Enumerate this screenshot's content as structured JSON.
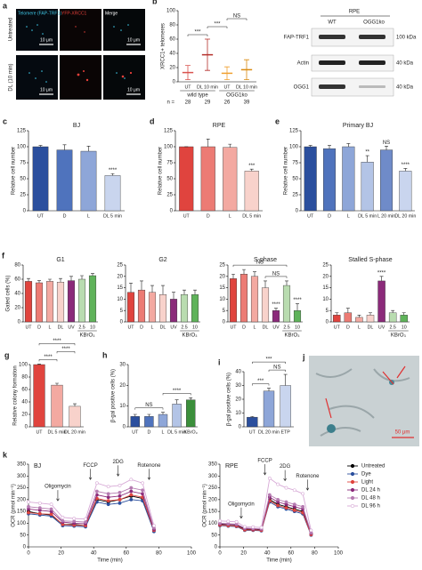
{
  "images": {
    "a": {
      "panel": "a",
      "row_labels": [
        "Untreated",
        "DL (10 min)"
      ],
      "column_labels": [
        "Telomere (FAP-TRF1)",
        "YFP-XRCC1",
        "Merge"
      ],
      "scale": "10 μm"
    },
    "j": {
      "panel": "j",
      "scale": "50 μm"
    }
  },
  "blot": {
    "title": "RPE",
    "lanes": [
      "WT",
      "OGG1ko"
    ],
    "bands": [
      {
        "label": "FAP-TRF1",
        "marker": "100 kDa"
      },
      {
        "label": "Actin",
        "marker": "40 kDa"
      },
      {
        "label": "OGG1",
        "marker": "40 kDa"
      }
    ]
  },
  "chart_data": [
    {
      "type": "dot",
      "panel": "b",
      "ylabel": "XRCC1+ telomeres",
      "categories": [
        "UT",
        "DL 10 min",
        "UT",
        "DL 10 min"
      ],
      "values": [
        13,
        38,
        12,
        17
      ],
      "errors": [
        10,
        22,
        9,
        14
      ],
      "colors": [
        "#d9534f",
        "#b52f2a",
        "#f0a030",
        "#d98a10"
      ],
      "ylim": [
        0,
        100
      ],
      "yticks": [
        0,
        20,
        40,
        60,
        80,
        100
      ],
      "brackets": [
        {
          "text": "***",
          "from": 0,
          "to": 1
        },
        {
          "text": "***",
          "from": 1,
          "to": 2
        },
        {
          "text": "NS",
          "from": 2,
          "to": 3
        }
      ],
      "groups": [
        {
          "text": "wild type",
          "from": 0,
          "to": 1
        },
        {
          "text": "OGG1ko",
          "from": 2,
          "to": 3
        }
      ],
      "n_label": "n =",
      "n": [
        28,
        29,
        26,
        39
      ]
    },
    {
      "type": "bar",
      "panel": "c",
      "title": "BJ",
      "ylabel": "Relative cell number",
      "categories": [
        "UT",
        "D",
        "L",
        "DL 5 min"
      ],
      "values": [
        100,
        95,
        93,
        55
      ],
      "errors": [
        2,
        8,
        8,
        3
      ],
      "colors": [
        "#2b4f9e",
        "#4f73bd",
        "#8ea6d8",
        "#c9d5ee"
      ],
      "ylim": [
        0,
        125
      ],
      "yticks": [
        0,
        25,
        50,
        75,
        100,
        125
      ],
      "significance": [
        null,
        null,
        null,
        "****"
      ]
    },
    {
      "type": "bar",
      "panel": "d",
      "title": "RPE",
      "ylabel": "Relative cell number",
      "categories": [
        "UT",
        "D",
        "L",
        "DL 5 min"
      ],
      "values": [
        100,
        100,
        99,
        62
      ],
      "errors": [
        0,
        12,
        5,
        3
      ],
      "colors": [
        "#e0443e",
        "#ec7b74",
        "#f3a9a1",
        "#f8d2cb"
      ],
      "ylim": [
        0,
        125
      ],
      "yticks": [
        0,
        25,
        50,
        75,
        100,
        125
      ],
      "significance": [
        null,
        null,
        null,
        "***"
      ]
    },
    {
      "type": "bar",
      "panel": "e",
      "title": "Primary BJ",
      "ylabel": "Relative cell number",
      "categories": [
        "UT",
        "D",
        "L",
        "DL 5 min",
        "L 20 min",
        "DL 20 min"
      ],
      "values": [
        100,
        97,
        100,
        76,
        95,
        62
      ],
      "errors": [
        2,
        5,
        5,
        10,
        6,
        4
      ],
      "colors": [
        "#2b4f9e",
        "#4f73bd",
        "#8ea6d8",
        "#b3c4e6",
        "#6f8bc9",
        "#c9d5ee"
      ],
      "ylim": [
        0,
        125
      ],
      "yticks": [
        0,
        25,
        50,
        75,
        100,
        125
      ],
      "significance": [
        null,
        null,
        null,
        "**",
        "NS",
        "****"
      ]
    },
    {
      "type": "bar",
      "panel": "f",
      "title": "G1",
      "ylabel": "Gated cells (%)",
      "categories": [
        "UT",
        "D",
        "L",
        "DL",
        "UV",
        "2.5",
        "10"
      ],
      "values": [
        57,
        55,
        57,
        56,
        58,
        60,
        65
      ],
      "errors": [
        4,
        3,
        3,
        5,
        6,
        5,
        3
      ],
      "colors": [
        "#e0443e",
        "#ec7b74",
        "#f3a9a1",
        "#f8d2cb",
        "#8b2a7a",
        "#b9dcb0",
        "#5fb35a"
      ],
      "ylim": [
        0,
        80
      ],
      "yticks": [
        0,
        20,
        40,
        60,
        80
      ],
      "groups": [
        {
          "text": "KBrO₃",
          "from": 5,
          "to": 6
        }
      ]
    },
    {
      "type": "bar",
      "title": "G2",
      "categories": [
        "UT",
        "D",
        "L",
        "DL",
        "UV",
        "2.5",
        "10"
      ],
      "values": [
        13,
        14,
        13,
        12,
        10,
        12,
        12
      ],
      "errors": [
        4,
        4,
        3,
        4,
        3,
        2,
        2
      ],
      "colors": [
        "#e0443e",
        "#ec7b74",
        "#f3a9a1",
        "#f8d2cb",
        "#8b2a7a",
        "#b9dcb0",
        "#5fb35a"
      ],
      "ylim": [
        0,
        25
      ],
      "yticks": [
        0,
        5,
        10,
        15,
        20,
        25
      ],
      "groups": [
        {
          "text": "KBrO₃",
          "from": 5,
          "to": 6
        }
      ]
    },
    {
      "type": "bar",
      "title": "S-phase",
      "categories": [
        "UT",
        "D",
        "L",
        "DL",
        "UV",
        "2.5",
        "10"
      ],
      "values": [
        19,
        21,
        20,
        15,
        5,
        16,
        5
      ],
      "errors": [
        2,
        2,
        2,
        3,
        1,
        2,
        3
      ],
      "colors": [
        "#e0443e",
        "#ec7b74",
        "#f3a9a1",
        "#f8d2cb",
        "#8b2a7a",
        "#b9dcb0",
        "#5fb35a"
      ],
      "ylim": [
        0,
        25
      ],
      "yticks": [
        0,
        5,
        10,
        15,
        20,
        25
      ],
      "significance": [
        null,
        null,
        null,
        null,
        "****",
        null,
        "****"
      ],
      "brackets": [
        {
          "text": "NS",
          "from": 3,
          "to": 5
        },
        {
          "text": "NS",
          "from": 0,
          "to": 5
        }
      ],
      "groups": [
        {
          "text": "KBrO₃",
          "from": 5,
          "to": 6
        }
      ]
    },
    {
      "type": "bar",
      "title": "Stalled S-phase",
      "categories": [
        "UT",
        "D",
        "L",
        "DL",
        "UV",
        "2.5",
        "10"
      ],
      "values": [
        3,
        4,
        2,
        3,
        18,
        4,
        3
      ],
      "errors": [
        1,
        2,
        1,
        1,
        2,
        1,
        1
      ],
      "colors": [
        "#e0443e",
        "#ec7b74",
        "#f3a9a1",
        "#f8d2cb",
        "#8b2a7a",
        "#b9dcb0",
        "#5fb35a"
      ],
      "ylim": [
        0,
        25
      ],
      "yticks": [
        0,
        5,
        10,
        15,
        20,
        25
      ],
      "significance": [
        null,
        null,
        null,
        null,
        "****",
        null,
        null
      ],
      "groups": [
        {
          "text": "KBrO₃",
          "from": 5,
          "to": 6
        }
      ]
    },
    {
      "type": "bar",
      "panel": "g",
      "ylabel": "Relative colony formation",
      "categories": [
        "UT",
        "DL 5 min",
        "DL 20 min"
      ],
      "values": [
        100,
        67,
        33
      ],
      "errors": [
        1,
        3,
        4
      ],
      "colors": [
        "#e0443e",
        "#f3a9a1",
        "#f8d2cb"
      ],
      "ylim": [
        0,
        100
      ],
      "yticks": [
        0,
        20,
        40,
        60,
        80,
        100
      ],
      "brackets": [
        {
          "text": "****",
          "from": 0,
          "to": 1
        },
        {
          "text": "****",
          "from": 1,
          "to": 2
        },
        {
          "text": "****",
          "from": 0,
          "to": 2
        }
      ]
    },
    {
      "type": "bar",
      "panel": "h",
      "ylabel": "β-gal positive cells (%)",
      "categories": [
        "UT",
        "D",
        "L",
        "DL 5 min",
        "KBrO₃"
      ],
      "values": [
        5,
        5,
        6,
        11,
        13
      ],
      "errors": [
        1,
        1,
        1,
        2,
        1
      ],
      "colors": [
        "#2b4f9e",
        "#4f73bd",
        "#8ea6d8",
        "#b3c4e6",
        "#3b8f3b"
      ],
      "ylim": [
        0,
        30
      ],
      "yticks": [
        0,
        10,
        20,
        30
      ],
      "brackets": [
        {
          "text": "NS",
          "from": 0,
          "to": 2
        },
        {
          "text": "****",
          "from": 2,
          "to": 4
        }
      ]
    },
    {
      "type": "bar",
      "panel": "i",
      "ylabel": "β-gal positive cells (%)",
      "categories": [
        "UT",
        "DL 20 min",
        "ETP"
      ],
      "values": [
        7,
        26,
        30
      ],
      "errors": [
        0.5,
        2,
        8
      ],
      "colors": [
        "#2b4f9e",
        "#8ea6d8",
        "#c9d5ee"
      ],
      "ylim": [
        0,
        40
      ],
      "yticks": [
        0,
        10,
        20,
        30,
        40
      ],
      "brackets": [
        {
          "text": "***",
          "from": 0,
          "to": 1
        },
        {
          "text": "NS",
          "from": 1,
          "to": 2
        },
        {
          "text": "***",
          "from": 0,
          "to": 2
        }
      ]
    },
    {
      "type": "line",
      "panel": "k",
      "title": "BJ",
      "xlabel": "Time (min)",
      "ylabel": "OCR (pmol min⁻¹)",
      "x": [
        0,
        7,
        14,
        21,
        28,
        35,
        42,
        49,
        56,
        63,
        70,
        77
      ],
      "xlim": [
        0,
        100
      ],
      "xticks": [
        0,
        20,
        40,
        60,
        80,
        100
      ],
      "ylim": [
        0,
        350
      ],
      "yticks": [
        0,
        50,
        100,
        150,
        200,
        250,
        300,
        350
      ],
      "injections": [
        {
          "text": "Oligomycin",
          "x": 18
        },
        {
          "text": "FCCP",
          "x": 38
        },
        {
          "text": "2DG",
          "x": 55
        },
        {
          "text": "Rotenone",
          "x": 74
        }
      ],
      "series": [
        {
          "name": "Untreated",
          "color": "#000000",
          "values": [
            150,
            140,
            135,
            95,
            95,
            90,
            200,
            190,
            200,
            215,
            205,
            70
          ]
        },
        {
          "name": "Dye",
          "color": "#2b4f9e",
          "values": [
            140,
            135,
            130,
            90,
            88,
            85,
            190,
            180,
            185,
            200,
            195,
            65
          ]
        },
        {
          "name": "Light",
          "color": "#e0443e",
          "values": [
            145,
            140,
            138,
            95,
            92,
            90,
            205,
            195,
            200,
            220,
            210,
            70
          ]
        },
        {
          "name": "DL 24 h",
          "color": "#8b2a7a",
          "values": [
            160,
            155,
            150,
            105,
            100,
            98,
            220,
            210,
            215,
            235,
            225,
            75
          ]
        },
        {
          "name": "DL 48 h",
          "color": "#b57ab0",
          "values": [
            170,
            165,
            160,
            110,
            108,
            105,
            235,
            225,
            230,
            250,
            240,
            80
          ]
        },
        {
          "name": "DL 96 h",
          "color": "#d7a9d6",
          "values": [
            190,
            185,
            180,
            125,
            120,
            118,
            270,
            255,
            260,
            285,
            270,
            90
          ]
        }
      ]
    },
    {
      "type": "line",
      "title": "RPE",
      "xlabel": "Time (min)",
      "ylabel": "OCR (pmol min⁻¹)",
      "x": [
        0,
        7,
        14,
        21,
        28,
        35,
        42,
        49,
        56,
        63,
        70,
        77
      ],
      "xlim": [
        0,
        100
      ],
      "xticks": [
        0,
        20,
        40,
        60,
        80,
        100
      ],
      "ylim": [
        0,
        350
      ],
      "yticks": [
        0,
        50,
        100,
        150,
        200,
        250,
        300,
        350
      ],
      "legend": "right",
      "injections": [
        {
          "text": "Oligomycin",
          "x": 18
        },
        {
          "text": "FCCP",
          "x": 38
        },
        {
          "text": "2DG",
          "x": 55
        },
        {
          "text": "Rotenone",
          "x": 74
        }
      ],
      "series": [
        {
          "name": "Untreated",
          "color": "#000000",
          "values": [
            95,
            95,
            92,
            75,
            75,
            72,
            200,
            180,
            170,
            160,
            150,
            55
          ]
        },
        {
          "name": "Dye",
          "color": "#2b4f9e",
          "values": [
            90,
            88,
            86,
            70,
            70,
            68,
            190,
            170,
            160,
            150,
            140,
            50
          ]
        },
        {
          "name": "Light",
          "color": "#e0443e",
          "values": [
            92,
            90,
            88,
            72,
            72,
            70,
            195,
            175,
            165,
            155,
            145,
            52
          ]
        },
        {
          "name": "DL 24 h",
          "color": "#8b2a7a",
          "values": [
            98,
            96,
            94,
            78,
            76,
            75,
            210,
            190,
            180,
            170,
            160,
            58
          ]
        },
        {
          "name": "DL 48 h",
          "color": "#b57ab0",
          "values": [
            100,
            98,
            96,
            80,
            78,
            76,
            220,
            200,
            190,
            180,
            170,
            60
          ]
        },
        {
          "name": "DL 96 h",
          "color": "#d7a9d6",
          "values": [
            110,
            108,
            106,
            85,
            84,
            82,
            290,
            265,
            250,
            240,
            225,
            70
          ]
        }
      ]
    }
  ]
}
